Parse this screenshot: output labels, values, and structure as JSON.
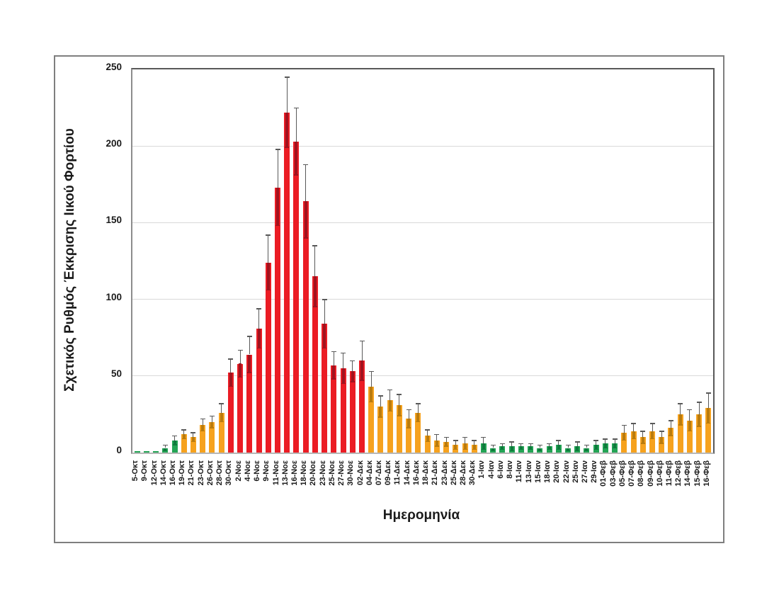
{
  "figure": {
    "background": "#ffffff",
    "border_color": "#7f7f7f"
  },
  "chart_data": {
    "type": "bar",
    "title": "",
    "xlabel": "Ημερομηνία",
    "ylabel": "Σχετικός Ρυθμός Έκκρισης Ιικού Φορτίου",
    "ylim": [
      0,
      250
    ],
    "yticks": [
      0,
      50,
      100,
      150,
      200,
      250
    ],
    "grid": true,
    "legend": "none",
    "error_bars": true,
    "categories": [
      "5-Οκτ",
      "9-Οκτ",
      "12-Οκτ",
      "14-Οκτ",
      "16-Οκτ",
      "19-Οκτ",
      "21-Οκτ",
      "23-Οκτ",
      "26-Οκτ",
      "28-Οκτ",
      "30-Οκτ",
      "2-Νοε",
      "4-Νοε",
      "6-Νοε",
      "9-Νοε",
      "11-Νοε",
      "13-Νοε",
      "16-Νοε",
      "18-Νοε",
      "20-Νοε",
      "23-Νοε",
      "25-Νοε",
      "27-Νοε",
      "30-Νοε",
      "02-Δεκ",
      "04-Δεκ",
      "07-Δεκ",
      "09-Δεκ",
      "11-Δεκ",
      "14-Δεκ",
      "16-Δεκ",
      "18-Δεκ",
      "21-Δεκ",
      "23-Δεκ",
      "25-Δεκ",
      "28-Δεκ",
      "30-Δεκ",
      "1-Ιαν",
      "4-Ιαν",
      "6-Ιαν",
      "8-Ιαν",
      "11-Ιαν",
      "13-Ιαν",
      "15-Ιαν",
      "18-Ιαν",
      "20-Ιαν",
      "22-Ιαν",
      "25-Ιαν",
      "27-Ιαν",
      "29-Ιαν",
      "01-Φεβ",
      "03-Φεβ",
      "05-Φεβ",
      "07-Φεβ",
      "08-Φεβ",
      "09-Φεβ",
      "10-Φεβ",
      "11-Φεβ",
      "12-Φεβ",
      "14-Φεβ",
      "15-Φεβ",
      "16-Φεβ"
    ],
    "values": [
      1,
      1,
      1,
      3,
      8,
      12,
      10,
      18,
      20,
      26,
      52,
      58,
      64,
      81,
      124,
      173,
      222,
      203,
      164,
      115,
      84,
      57,
      55,
      53,
      60,
      43,
      30,
      34,
      31,
      22,
      26,
      11,
      8,
      7,
      5,
      6,
      5,
      6,
      3,
      4,
      4,
      4,
      4,
      3,
      4,
      5,
      3,
      4,
      3,
      5,
      6,
      6,
      13,
      14,
      10,
      14,
      10,
      16,
      25,
      21,
      25,
      29
    ],
    "error_plus_minus": [
      0,
      0,
      0,
      2,
      3,
      3,
      3,
      4,
      4,
      6,
      9,
      9,
      12,
      13,
      18,
      25,
      23,
      22,
      24,
      20,
      16,
      9,
      10,
      7,
      13,
      10,
      7,
      7,
      7,
      6,
      6,
      4,
      4,
      3,
      3,
      4,
      3,
      4,
      2,
      2,
      3,
      2,
      2,
      2,
      2,
      3,
      2,
      3,
      2,
      3,
      3,
      3,
      5,
      5,
      4,
      5,
      4,
      5,
      7,
      7,
      8,
      10
    ],
    "bar_colors": [
      "g",
      "g",
      "g",
      "g",
      "g",
      "o",
      "o",
      "o",
      "o",
      "o",
      "r",
      "r",
      "r",
      "r",
      "r",
      "r",
      "r",
      "r",
      "r",
      "r",
      "r",
      "r",
      "r",
      "r",
      "r",
      "o",
      "o",
      "o",
      "o",
      "o",
      "o",
      "o",
      "o",
      "o",
      "o",
      "o",
      "o",
      "g",
      "g",
      "g",
      "g",
      "g",
      "g",
      "g",
      "g",
      "g",
      "g",
      "g",
      "g",
      "g",
      "g",
      "g",
      "o",
      "o",
      "o",
      "o",
      "o",
      "o",
      "o",
      "o",
      "o",
      "o"
    ],
    "palette": {
      "g": "#23A455",
      "o": "#F6A21E",
      "r": "#EB1C24"
    },
    "palette_dark": {
      "g": "#0E7A3C",
      "o": "#B97B0E",
      "r": "#A0131F"
    },
    "gridline_color": "#d9d9d9",
    "error_bar_color": "#595959",
    "text_color": "#1a1a1a"
  }
}
